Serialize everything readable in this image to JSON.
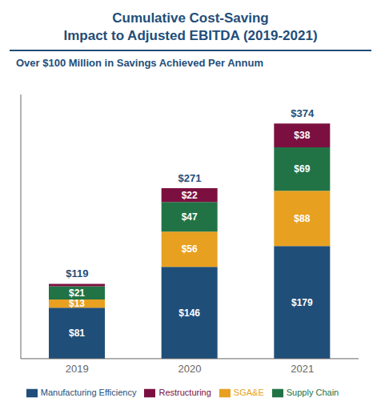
{
  "chart_data": {
    "type": "bar",
    "stacked": true,
    "title": [
      "Cumulative Cost-Saving",
      "Impact to Adjusted EBITDA (2019-2021)"
    ],
    "subtitle": "Over $100 Million in Savings Achieved Per Annum",
    "categories": [
      "2019",
      "2020",
      "2021"
    ],
    "series": [
      {
        "name": "Manufacturing Efficiency",
        "color": "#1F4E79",
        "values": [
          81,
          146,
          179
        ],
        "value_labels": [
          "$81",
          "$146",
          "$179"
        ]
      },
      {
        "name": "SGA&E",
        "color": "#E8A020",
        "values": [
          13,
          56,
          88
        ],
        "value_labels": [
          "$13",
          "$56",
          "$88"
        ]
      },
      {
        "name": "Supply Chain",
        "color": "#217346",
        "values": [
          21,
          47,
          69
        ],
        "value_labels": [
          "$21",
          "$47",
          "$69"
        ]
      },
      {
        "name": "Restructuring",
        "color": "#7B1040",
        "values": [
          4,
          22,
          38
        ],
        "value_labels": [
          null,
          "$22",
          "$38"
        ]
      }
    ],
    "totals": [
      119,
      271,
      374
    ],
    "total_labels": [
      "$119",
      "$271",
      "$374"
    ],
    "ylim": [
      0,
      420
    ],
    "data_labels": true,
    "tick_labels": "x",
    "legend": "bottom"
  }
}
